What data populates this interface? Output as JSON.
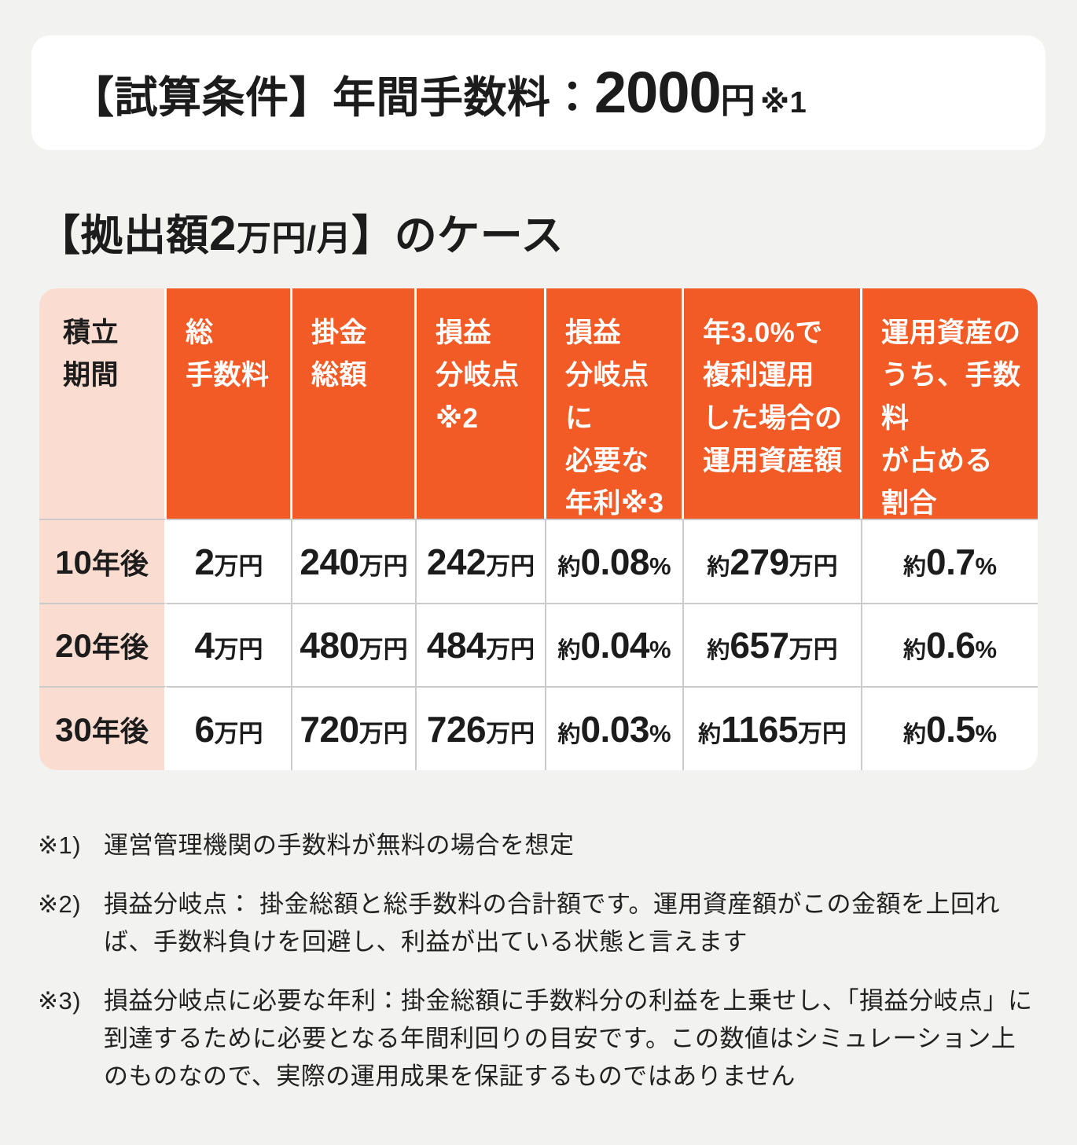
{
  "title_card": {
    "label": "【試算条件】年間手数料：",
    "value": "2000",
    "unit": "円",
    "note": "※1"
  },
  "case_heading": {
    "pre": "【拠出額",
    "value": "2",
    "mid": "万円/月",
    "post": "】のケース"
  },
  "table": {
    "columns": [
      {
        "label": "積立\n期間"
      },
      {
        "label": "総\n手数料"
      },
      {
        "label": "掛金\n総額"
      },
      {
        "label": "損益\n分岐点\n※2"
      },
      {
        "label": "損益\n分岐点に\n必要な\n年利※3"
      },
      {
        "label": "年3.0%で\n複利運用\nした場合の\n運用資産額"
      },
      {
        "label": "運用資産の\nうち、手数料\nが占める\n割合"
      }
    ],
    "rows": [
      {
        "period": {
          "value": "10",
          "suffix": "年後"
        },
        "cells": [
          {
            "prefix": "",
            "value": "2",
            "unit": "万円"
          },
          {
            "prefix": "",
            "value": "240",
            "unit": "万円"
          },
          {
            "prefix": "",
            "value": "242",
            "unit": "万円"
          },
          {
            "prefix": "約",
            "value": "0.08",
            "unit": "%"
          },
          {
            "prefix": "約",
            "value": "279",
            "unit": "万円"
          },
          {
            "prefix": "約",
            "value": "0.7",
            "unit": "%"
          }
        ]
      },
      {
        "period": {
          "value": "20",
          "suffix": "年後"
        },
        "cells": [
          {
            "prefix": "",
            "value": "4",
            "unit": "万円"
          },
          {
            "prefix": "",
            "value": "480",
            "unit": "万円"
          },
          {
            "prefix": "",
            "value": "484",
            "unit": "万円"
          },
          {
            "prefix": "約",
            "value": "0.04",
            "unit": "%"
          },
          {
            "prefix": "約",
            "value": "657",
            "unit": "万円"
          },
          {
            "prefix": "約",
            "value": "0.6",
            "unit": "%"
          }
        ]
      },
      {
        "period": {
          "value": "30",
          "suffix": "年後"
        },
        "cells": [
          {
            "prefix": "",
            "value": "6",
            "unit": "万円"
          },
          {
            "prefix": "",
            "value": "720",
            "unit": "万円"
          },
          {
            "prefix": "",
            "value": "726",
            "unit": "万円"
          },
          {
            "prefix": "約",
            "value": "0.03",
            "unit": "%"
          },
          {
            "prefix": "約",
            "value": "1165",
            "unit": "万円"
          },
          {
            "prefix": "約",
            "value": "0.5",
            "unit": "%"
          }
        ]
      }
    ]
  },
  "footnotes": [
    {
      "marker": "※1)",
      "text": "運営管理機関の手数料が無料の場合を想定"
    },
    {
      "marker": "※2)",
      "text": "損益分岐点： 掛金総額と総手数料の合計額です。運用資産額がこの金額を上回れば、手数料負けを回避し、利益が出ている状態と言えます"
    },
    {
      "marker": "※3)",
      "text": "損益分岐点に必要な年利：掛金総額に手数料分の利益を上乗せし、「損益分岐点」に到達するために必要となる年間利回りの目安です。この数値はシミュレーション上のものなので、実際の運用成果を保証するものではありません"
    }
  ],
  "colors": {
    "accent_orange": "#F25A26",
    "header_pink": "#FADDD0",
    "page_background": "#F2F2F0",
    "divider_gray": "#CBCBCB",
    "card_white": "#FFFFFF"
  }
}
